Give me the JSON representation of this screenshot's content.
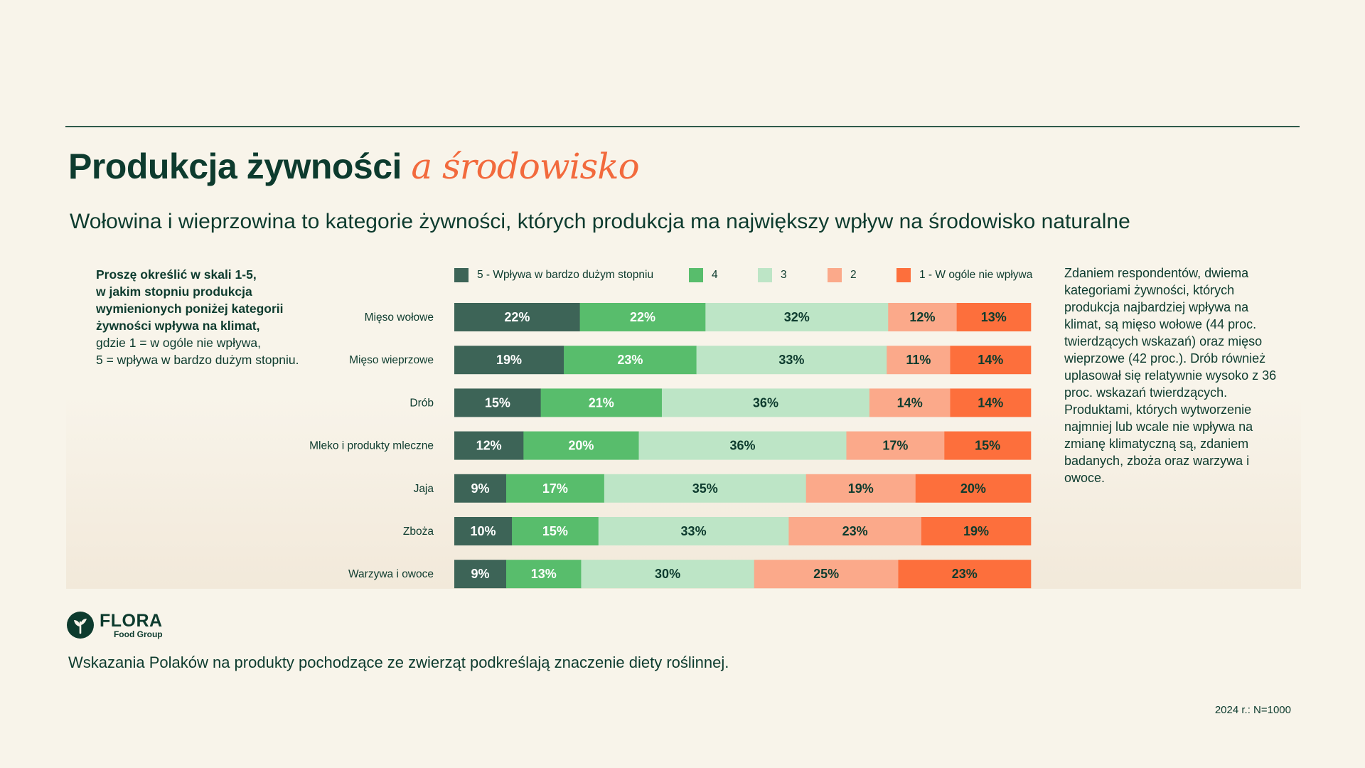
{
  "title": {
    "main": "Produkcja żywności",
    "accent": "a środowisko"
  },
  "subtitle": "Wołowina i wieprzowina to kategorie żywności, których produkcja ma największy wpływ na środowisko naturalne",
  "question": {
    "bold_lines": [
      "Proszę określić w skali 1-5,",
      "w jakim stopniu produkcja",
      "wymienionych poniżej kategorii",
      "żywności wpływa na klimat,"
    ],
    "normal_lines": [
      "gdzie 1 = w ogóle nie wpływa,",
      "5 = wpływa w bardzo dużym stopniu."
    ]
  },
  "side_note": "Zdaniem respondentów, dwiema kategoriami żywności, których produkcja najbardziej wpływa na klimat, są mięso wołowe (44 proc. twierdzących wskazań) oraz mięso wieprzowe (42 proc.). Drób również uplasował się relatywnie wysoko z 36 proc. wskazań twierdzących. Produktami, których wytworzenie najmniej lub wcale nie wpływa na zmianę klimatyczną są, zdaniem badanych, zboża oraz warzywa i owoce.",
  "brand": {
    "name": "FLORA",
    "sub": "Food Group"
  },
  "footer_text": "Wskazania Polaków na produkty pochodzące ze zwierząt podkreślają znaczenie diety roślinnej.",
  "sample_note": "2024 r.: N=1000",
  "colors": {
    "text": "#0d3b2e",
    "s5": "#3d6457",
    "s4": "#58bd6c",
    "s3": "#bde5c6",
    "s2": "#fba98a",
    "s1": "#fd6f3c",
    "accent": "#f26a3d",
    "label_light": "#ffffff",
    "label_dark": "#0d3b2e"
  },
  "chart_data": {
    "type": "bar",
    "orientation": "horizontal",
    "stacked": true,
    "unit": "%",
    "xlim": [
      0,
      100
    ],
    "categories": [
      "Mięso wołowe",
      "Mięso wieprzowe",
      "Drób",
      "Mleko i produkty mleczne",
      "Jaja",
      "Zboża",
      "Warzywa i owoce"
    ],
    "series": [
      {
        "name": "5 - Wpływa w bardzo dużym stopniu",
        "color": "#3d6457",
        "label_color": "#ffffff",
        "values": [
          22,
          19,
          15,
          12,
          9,
          10,
          9
        ]
      },
      {
        "name": "4",
        "color": "#58bd6c",
        "label_color": "#ffffff",
        "values": [
          22,
          23,
          21,
          20,
          17,
          15,
          13
        ]
      },
      {
        "name": "3",
        "color": "#bde5c6",
        "label_color": "#0d3b2e",
        "values": [
          32,
          33,
          36,
          36,
          35,
          33,
          30
        ]
      },
      {
        "name": "2",
        "color": "#fba98a",
        "label_color": "#0d3b2e",
        "values": [
          12,
          11,
          14,
          17,
          19,
          23,
          25
        ]
      },
      {
        "name": "1 - W ogóle nie wpływa",
        "color": "#fd6f3c",
        "label_color": "#0d3b2e",
        "values": [
          13,
          14,
          14,
          15,
          20,
          19,
          23
        ]
      }
    ],
    "legend_position": "top"
  }
}
